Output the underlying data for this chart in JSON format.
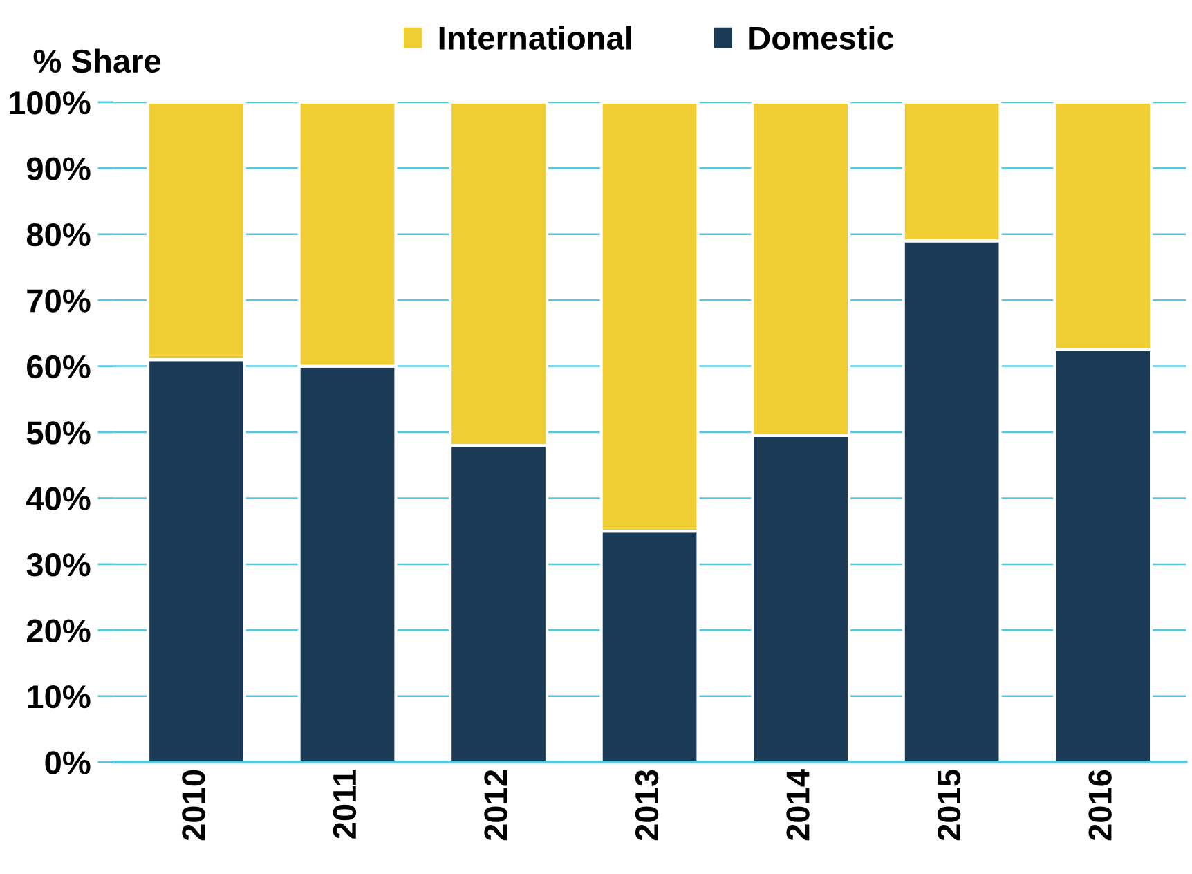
{
  "chart_data": {
    "type": "bar",
    "stacked": true,
    "ylabel": "% Share",
    "categories": [
      "2010",
      "2011",
      "2012",
      "2013",
      "2014",
      "2015",
      "2016"
    ],
    "series": [
      {
        "name": "Domestic",
        "color": "#1b3a55",
        "values": [
          61,
          60,
          48,
          35,
          49.5,
          79,
          62.5
        ]
      },
      {
        "name": "International",
        "color": "#f0ce33",
        "values": [
          39,
          40,
          52,
          65,
          50.5,
          21,
          37.5
        ]
      }
    ],
    "ylim": [
      0,
      100
    ],
    "yticks": [
      {
        "value": 0,
        "label": "0%"
      },
      {
        "value": 10,
        "label": "10%"
      },
      {
        "value": 20,
        "label": "20%"
      },
      {
        "value": 30,
        "label": "30%"
      },
      {
        "value": 40,
        "label": "40%"
      },
      {
        "value": 50,
        "label": "50%"
      },
      {
        "value": 60,
        "label": "60%"
      },
      {
        "value": 70,
        "label": "70%"
      },
      {
        "value": 80,
        "label": "80%"
      },
      {
        "value": 90,
        "label": "90%"
      },
      {
        "value": 100,
        "label": "100%"
      }
    ],
    "grid": "y",
    "legend": "top"
  }
}
